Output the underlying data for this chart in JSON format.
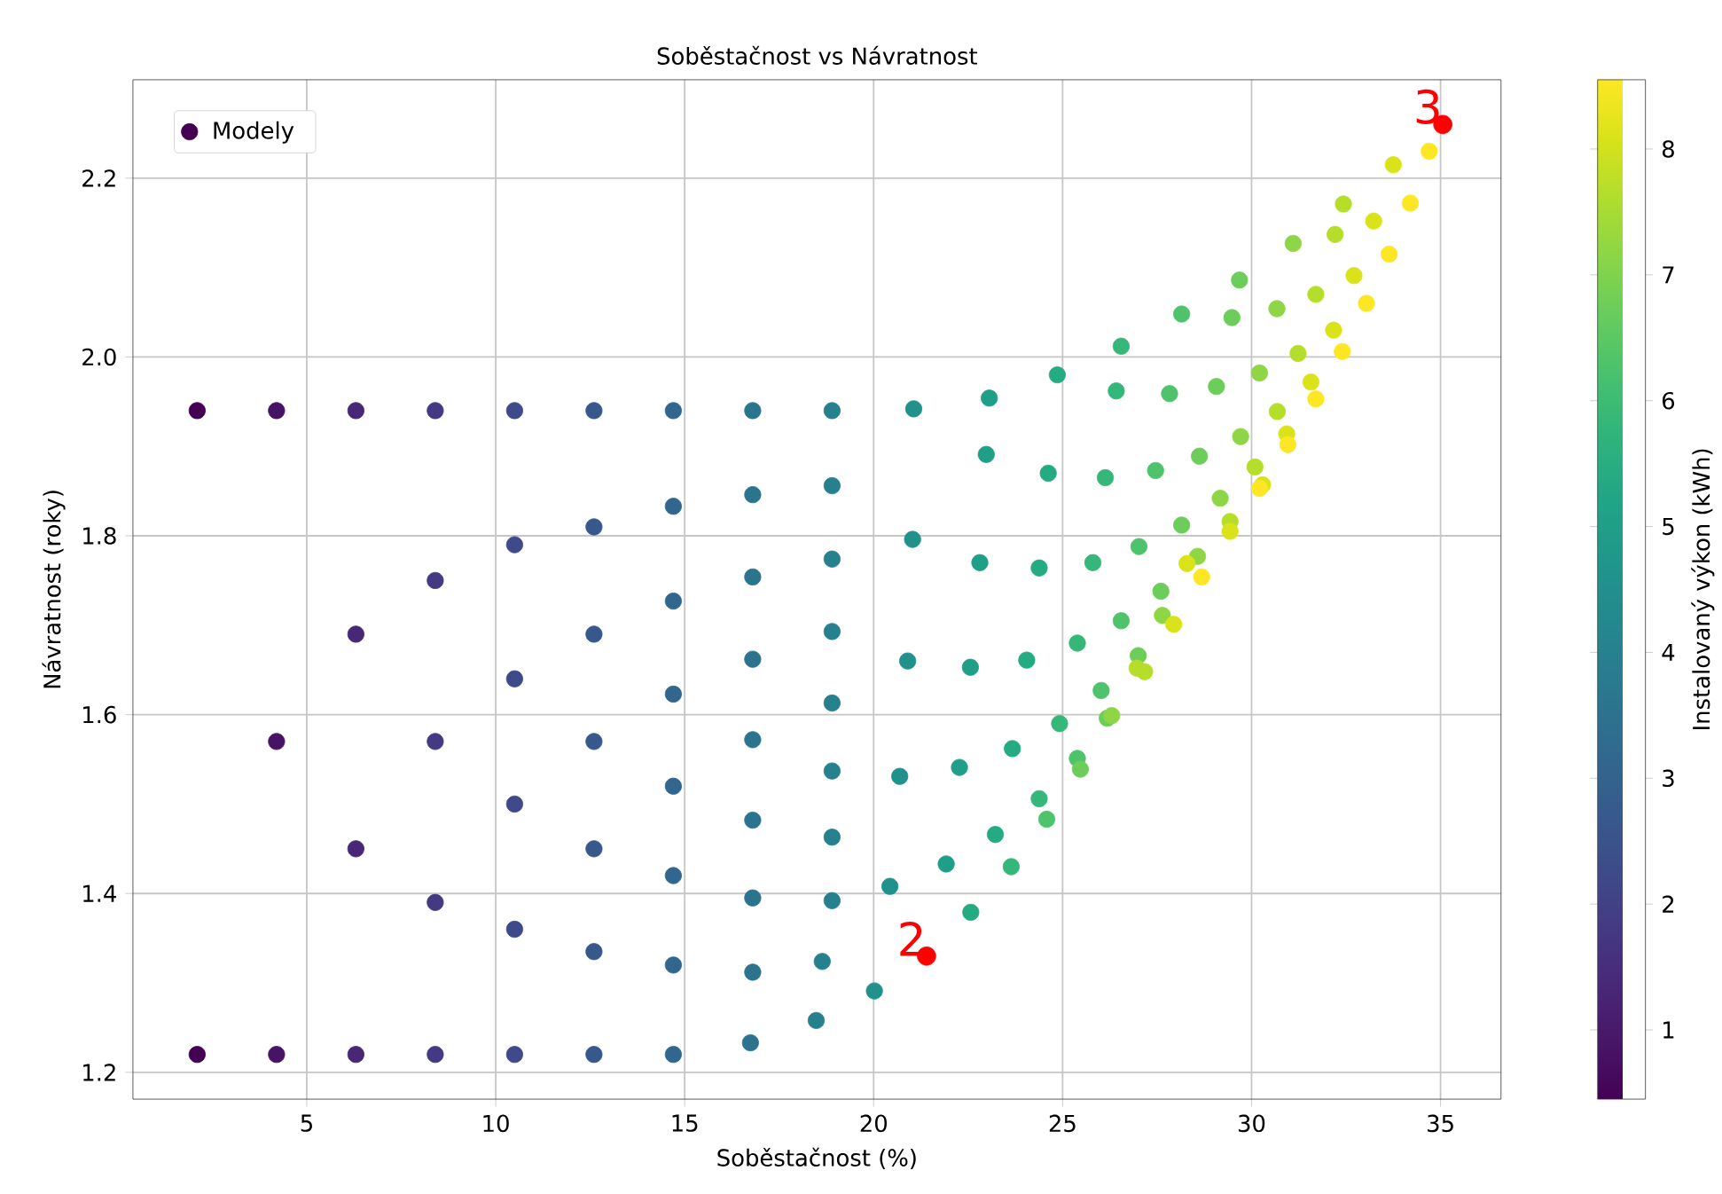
{
  "chart_data": {
    "type": "scatter",
    "title": "Soběstačnost vs Návratnost",
    "xlabel": "Soběstačnost (%)",
    "ylabel": "Návratnost (roky)",
    "clabel": "Instalovaný výkon (kWh)",
    "xlim": [
      0.4,
      36.6
    ],
    "ylim": [
      1.17,
      2.31
    ],
    "xticks": [
      5,
      10,
      15,
      20,
      25,
      30,
      35
    ],
    "yticks": [
      {
        "value": 1.2,
        "label": "1.2"
      },
      {
        "value": 1.4,
        "label": "1.4"
      },
      {
        "value": 1.6,
        "label": "1.6"
      },
      {
        "value": 1.8,
        "label": "1.8"
      },
      {
        "value": 2.0,
        "label": "2.0"
      },
      {
        "value": 2.2,
        "label": "2.2"
      }
    ],
    "clim": [
      0.45,
      8.55
    ],
    "cticks": [
      1,
      2,
      3,
      4,
      5,
      6,
      7,
      8
    ],
    "grid": true,
    "legend": "top left",
    "marker": "circle",
    "series": [
      {
        "name": "Modely",
        "x": [
          2.1,
          2.1,
          4.2,
          4.2,
          4.2,
          6.3,
          6.3,
          6.3,
          6.3,
          8.4,
          8.4,
          8.4,
          8.4,
          8.4,
          10.5,
          10.5,
          10.5,
          10.5,
          10.5,
          10.5,
          12.6,
          12.6,
          12.6,
          12.6,
          12.6,
          12.6,
          12.6,
          14.7,
          14.7,
          14.7,
          14.7,
          14.7,
          14.7,
          14.7,
          14.7,
          16.8,
          16.8,
          16.8,
          16.8,
          16.8,
          16.8,
          16.8,
          16.8,
          16.74,
          18.9,
          18.9,
          18.9,
          18.9,
          18.9,
          18.9,
          18.9,
          18.9,
          18.64,
          18.48,
          21.06,
          21.03,
          20.9,
          20.69,
          20.43,
          20.02,
          23.06,
          22.98,
          22.81,
          22.56,
          22.27,
          21.92,
          24.86,
          24.62,
          24.38,
          24.05,
          23.67,
          23.22,
          22.57,
          26.55,
          26.42,
          26.13,
          25.8,
          25.39,
          24.92,
          24.38,
          23.64,
          28.15,
          27.83,
          27.46,
          27.02,
          26.55,
          26.02,
          25.39,
          24.58,
          29.68,
          29.48,
          29.07,
          28.62,
          28.15,
          27.6,
          27.0,
          26.18,
          25.47,
          31.1,
          30.67,
          30.21,
          29.71,
          29.17,
          28.57,
          27.64,
          26.3,
          32.43,
          32.21,
          31.7,
          31.23,
          30.68,
          30.09,
          29.43,
          26.97,
          27.17,
          33.75,
          33.23,
          32.71,
          32.17,
          31.57,
          30.93,
          30.29,
          29.43,
          28.29,
          27.94,
          34.7,
          34.2,
          33.64,
          33.04,
          32.4,
          31.7,
          30.96,
          30.21,
          28.68
        ],
        "values": [
          1.94,
          1.22,
          1.94,
          1.57,
          1.22,
          1.94,
          1.69,
          1.45,
          1.22,
          1.94,
          1.75,
          1.57,
          1.39,
          1.22,
          1.94,
          1.79,
          1.64,
          1.5,
          1.36,
          1.22,
          1.94,
          1.81,
          1.69,
          1.57,
          1.45,
          1.335,
          1.22,
          1.94,
          1.833,
          1.727,
          1.623,
          1.52,
          1.42,
          1.32,
          1.22,
          1.94,
          1.846,
          1.754,
          1.662,
          1.572,
          1.482,
          1.395,
          1.312,
          1.233,
          1.94,
          1.856,
          1.774,
          1.693,
          1.613,
          1.537,
          1.463,
          1.392,
          1.324,
          1.258,
          1.942,
          1.796,
          1.66,
          1.531,
          1.408,
          1.291,
          1.954,
          1.891,
          1.77,
          1.653,
          1.541,
          1.433,
          1.98,
          1.87,
          1.764,
          1.661,
          1.562,
          1.466,
          1.379,
          2.012,
          1.962,
          1.865,
          1.77,
          1.68,
          1.59,
          1.506,
          1.43,
          2.048,
          1.959,
          1.873,
          1.788,
          1.705,
          1.627,
          1.551,
          1.483,
          2.086,
          2.044,
          1.967,
          1.889,
          1.812,
          1.738,
          1.666,
          1.596,
          1.539,
          2.127,
          2.054,
          1.982,
          1.911,
          1.842,
          1.777,
          1.711,
          1.599,
          2.171,
          2.137,
          2.07,
          2.004,
          1.939,
          1.877,
          1.816,
          1.652,
          1.648,
          2.215,
          2.152,
          2.091,
          2.03,
          1.972,
          1.914,
          1.857,
          1.805,
          1.769,
          1.701,
          2.23,
          2.172,
          2.115,
          2.06,
          2.006,
          1.953,
          1.902,
          1.853,
          1.754
        ],
        "cvalues": [
          0.45,
          0.45,
          0.9,
          0.9,
          0.9,
          1.35,
          1.35,
          1.35,
          1.35,
          1.8,
          1.8,
          1.8,
          1.8,
          1.8,
          2.25,
          2.25,
          2.25,
          2.25,
          2.25,
          2.25,
          2.7,
          2.7,
          2.7,
          2.7,
          2.7,
          2.7,
          2.7,
          3.15,
          3.15,
          3.15,
          3.15,
          3.15,
          3.15,
          3.15,
          3.15,
          3.6,
          3.6,
          3.6,
          3.6,
          3.6,
          3.6,
          3.6,
          3.6,
          3.6,
          4.05,
          4.05,
          4.05,
          4.05,
          4.05,
          4.05,
          4.05,
          4.05,
          4.05,
          4.05,
          4.5,
          4.5,
          4.5,
          4.5,
          4.5,
          4.5,
          4.95,
          4.95,
          4.95,
          4.95,
          4.95,
          4.95,
          5.4,
          5.4,
          5.4,
          5.4,
          5.4,
          5.4,
          5.4,
          5.85,
          5.85,
          5.85,
          5.85,
          5.85,
          5.85,
          5.85,
          5.85,
          6.3,
          6.3,
          6.3,
          6.3,
          6.3,
          6.3,
          6.3,
          6.3,
          6.75,
          6.75,
          6.75,
          6.75,
          6.75,
          6.75,
          6.75,
          6.75,
          6.75,
          7.2,
          7.2,
          7.2,
          7.2,
          7.2,
          7.2,
          7.2,
          7.2,
          7.65,
          7.65,
          7.65,
          7.65,
          7.65,
          7.65,
          7.65,
          7.65,
          7.65,
          8.1,
          8.1,
          8.1,
          8.1,
          8.1,
          8.1,
          8.1,
          8.1,
          8.1,
          8.1,
          8.55,
          8.55,
          8.55,
          8.55,
          8.55,
          8.55,
          8.55,
          8.55,
          8.55
        ],
        "colors": [
          "#440154",
          "#440154",
          "#471365",
          "#471365",
          "#471365",
          "#482777",
          "#482777",
          "#482777",
          "#482777",
          "#443a83",
          "#443a83",
          "#443a83",
          "#443a83",
          "#443a83",
          "#3e4a89",
          "#3e4a89",
          "#3e4a89",
          "#3e4a89",
          "#3e4a89",
          "#3e4a89",
          "#38588c",
          "#38588c",
          "#38588c",
          "#38588c",
          "#38588c",
          "#38588c",
          "#38588c",
          "#31668e",
          "#31668e",
          "#31668e",
          "#31668e",
          "#31668e",
          "#31668e",
          "#31668e",
          "#31668e",
          "#2c738e",
          "#2c738e",
          "#2c738e",
          "#2c738e",
          "#2c738e",
          "#2c738e",
          "#2c738e",
          "#2c738e",
          "#2c738e",
          "#27808e",
          "#27808e",
          "#27808e",
          "#27808e",
          "#27808e",
          "#27808e",
          "#27808e",
          "#27808e",
          "#27808e",
          "#27808e",
          "#21918c",
          "#21918c",
          "#21918c",
          "#21918c",
          "#21918c",
          "#21918c",
          "#1f9f88",
          "#1f9f88",
          "#1f9f88",
          "#1f9f88",
          "#1f9f88",
          "#1f9f88",
          "#25ab82",
          "#25ab82",
          "#25ab82",
          "#25ab82",
          "#25ab82",
          "#25ab82",
          "#25ab82",
          "#35b779",
          "#35b779",
          "#35b779",
          "#35b779",
          "#35b779",
          "#35b779",
          "#35b779",
          "#35b779",
          "#4ec36b",
          "#4ec36b",
          "#4ec36b",
          "#4ec36b",
          "#4ec36b",
          "#4ec36b",
          "#4ec36b",
          "#4ec36b",
          "#6ccd5a",
          "#6ccd5a",
          "#6ccd5a",
          "#6ccd5a",
          "#6ccd5a",
          "#6ccd5a",
          "#6ccd5a",
          "#6ccd5a",
          "#6ccd5a",
          "#8ed645",
          "#8ed645",
          "#8ed645",
          "#8ed645",
          "#8ed645",
          "#8ed645",
          "#8ed645",
          "#8ed645",
          "#b5de2b",
          "#b5de2b",
          "#b5de2b",
          "#b5de2b",
          "#b5de2b",
          "#b5de2b",
          "#b5de2b",
          "#b5de2b",
          "#b5de2b",
          "#dae319",
          "#dae319",
          "#dae319",
          "#dae319",
          "#dae319",
          "#dae319",
          "#dae319",
          "#dae319",
          "#dae319",
          "#dae319",
          "#fde725",
          "#fde725",
          "#fde725",
          "#fde725",
          "#fde725",
          "#fde725",
          "#fde725",
          "#fde725",
          "#fde725"
        ]
      },
      {
        "color": "#ff0000",
        "x": [
          21.4,
          35.06
        ],
        "values": [
          1.33,
          2.26
        ]
      }
    ],
    "annotations": [
      {
        "text": "2",
        "x": 21.4,
        "y": 1.33
      },
      {
        "text": "3",
        "x": 35.06,
        "y": 2.26
      }
    ]
  }
}
